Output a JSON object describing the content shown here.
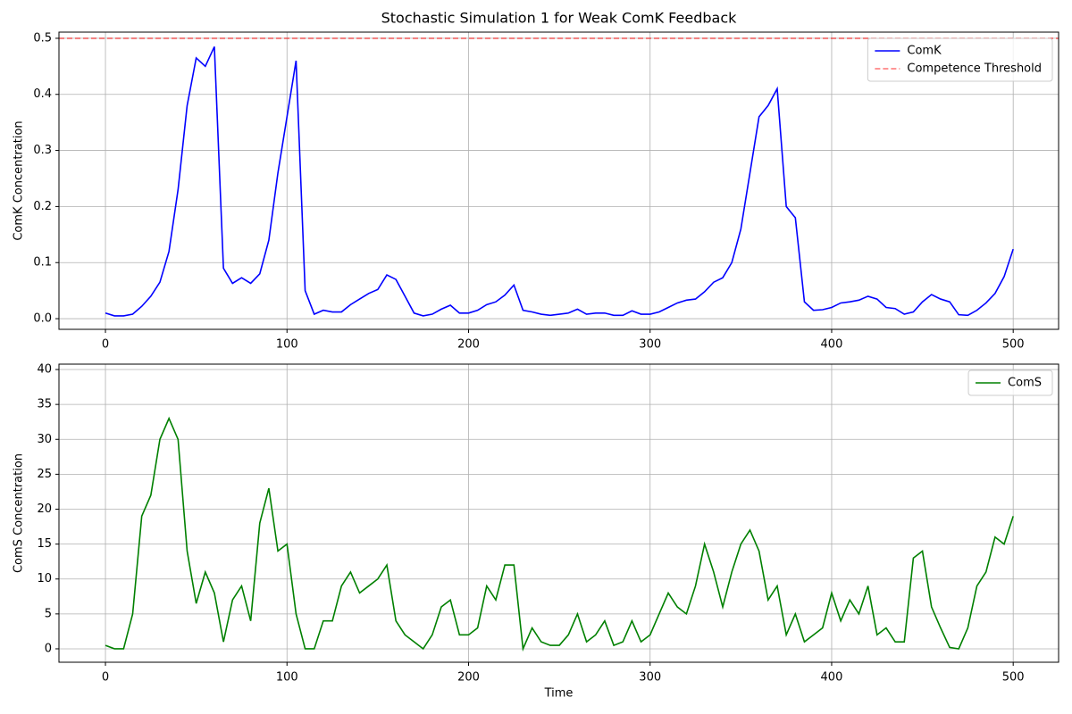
{
  "chart_data": [
    {
      "type": "line",
      "title": "Stochastic Simulation 1 for Weak ComK Feedback",
      "y_label": "ComK Concentration",
      "x": [
        0,
        5,
        10,
        15,
        20,
        25,
        30,
        35,
        40,
        45,
        50,
        55,
        60,
        65,
        70,
        75,
        80,
        85,
        90,
        95,
        100,
        105,
        110,
        115,
        120,
        125,
        130,
        135,
        140,
        145,
        150,
        155,
        160,
        165,
        170,
        175,
        180,
        185,
        190,
        195,
        200,
        205,
        210,
        215,
        220,
        225,
        230,
        235,
        240,
        245,
        250,
        255,
        260,
        265,
        270,
        275,
        280,
        285,
        290,
        295,
        300,
        305,
        310,
        315,
        320,
        325,
        330,
        335,
        340,
        345,
        350,
        355,
        360,
        365,
        370,
        375,
        380,
        385,
        390,
        395,
        400,
        405,
        410,
        415,
        420,
        425,
        430,
        435,
        440,
        445,
        450,
        455,
        460,
        465,
        470,
        475,
        480,
        485,
        490,
        495,
        500
      ],
      "series": [
        {
          "name": "ComK",
          "color": "#0000ff",
          "values": [
            0.01,
            0.005,
            0.005,
            0.008,
            0.022,
            0.04,
            0.065,
            0.12,
            0.23,
            0.38,
            0.465,
            0.45,
            0.485,
            0.09,
            0.063,
            0.073,
            0.063,
            0.08,
            0.14,
            0.26,
            0.36,
            0.46,
            0.05,
            0.008,
            0.015,
            0.012,
            0.012,
            0.025,
            0.035,
            0.045,
            0.052,
            0.078,
            0.07,
            0.04,
            0.01,
            0.005,
            0.008,
            0.017,
            0.024,
            0.01,
            0.01,
            0.015,
            0.025,
            0.03,
            0.042,
            0.06,
            0.015,
            0.012,
            0.008,
            0.006,
            0.008,
            0.01,
            0.017,
            0.008,
            0.01,
            0.01,
            0.006,
            0.006,
            0.014,
            0.008,
            0.008,
            0.012,
            0.02,
            0.028,
            0.033,
            0.035,
            0.048,
            0.065,
            0.073,
            0.1,
            0.16,
            0.26,
            0.36,
            0.38,
            0.41,
            0.2,
            0.18,
            0.03,
            0.015,
            0.016,
            0.02,
            0.028,
            0.03,
            0.033,
            0.04,
            0.035,
            0.02,
            0.018,
            0.008,
            0.012,
            0.03,
            0.043,
            0.035,
            0.03,
            0.007,
            0.006,
            0.015,
            0.028,
            0.045,
            0.075,
            0.124
          ]
        }
      ],
      "threshold": {
        "name": "Competence Threshold",
        "value": 0.5,
        "color": "#ff0000"
      },
      "xlim": [
        -25.6,
        525
      ],
      "ylim": [
        -0.019,
        0.511
      ],
      "xticks": [
        0,
        100,
        200,
        300,
        400,
        500
      ],
      "yticks": [
        {
          "value": 0,
          "label": "0.0"
        },
        0.1,
        0.2,
        0.3,
        0.4,
        0.5
      ],
      "grid": true,
      "legend": "upper-right"
    },
    {
      "type": "line",
      "x_label": "Time",
      "y_label": "ComS Concentration",
      "x": [
        0,
        5,
        10,
        15,
        20,
        25,
        30,
        35,
        40,
        45,
        50,
        55,
        60,
        65,
        70,
        75,
        80,
        85,
        90,
        95,
        100,
        105,
        110,
        115,
        120,
        125,
        130,
        135,
        140,
        145,
        150,
        155,
        160,
        165,
        170,
        175,
        180,
        185,
        190,
        195,
        200,
        205,
        210,
        215,
        220,
        225,
        230,
        235,
        240,
        245,
        250,
        255,
        260,
        265,
        270,
        275,
        280,
        285,
        290,
        295,
        300,
        305,
        310,
        315,
        320,
        325,
        330,
        335,
        340,
        345,
        350,
        355,
        360,
        365,
        370,
        375,
        380,
        385,
        390,
        395,
        400,
        405,
        410,
        415,
        420,
        425,
        430,
        435,
        440,
        445,
        450,
        455,
        460,
        465,
        470,
        475,
        480,
        485,
        490,
        495,
        500
      ],
      "series": [
        {
          "name": "ComS",
          "color": "#008000",
          "values": [
            0.5,
            0,
            0,
            5,
            19,
            22,
            30,
            33,
            30,
            14,
            6.5,
            11,
            8,
            1,
            7,
            9,
            4,
            18,
            23,
            14,
            15,
            5,
            0,
            0,
            4,
            4,
            9,
            11,
            8,
            9,
            10,
            12,
            4,
            2,
            1,
            0,
            2,
            6,
            7,
            2,
            2,
            3,
            9,
            7,
            12,
            12,
            0,
            3,
            1,
            0.5,
            0.5,
            2,
            5,
            1,
            2,
            4,
            0.5,
            1,
            4,
            1,
            2,
            5,
            8,
            6,
            5,
            9,
            15,
            11,
            6,
            11,
            15,
            17,
            14,
            7,
            9,
            2,
            5,
            1,
            2,
            3,
            8,
            4,
            7,
            5,
            9,
            2,
            3,
            1,
            1,
            13,
            14,
            6,
            3,
            0.2,
            0,
            3,
            9,
            11,
            16,
            15,
            19
          ]
        }
      ],
      "xlim": [
        -25.6,
        525
      ],
      "ylim": [
        -1.92,
        40.77
      ],
      "xticks": [
        0,
        100,
        200,
        300,
        400,
        500
      ],
      "yticks": [
        0,
        5,
        10,
        15,
        20,
        25,
        30,
        35,
        40
      ],
      "grid": true,
      "legend": "upper-right"
    }
  ]
}
